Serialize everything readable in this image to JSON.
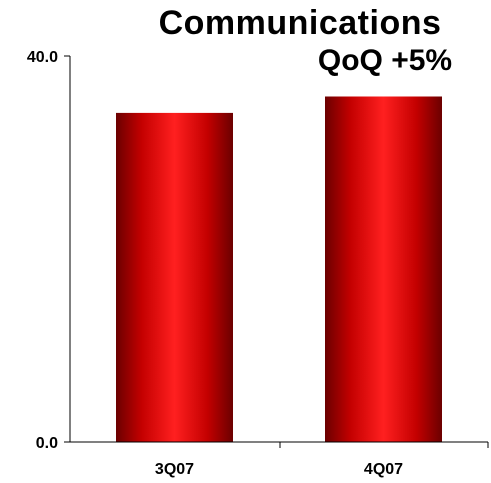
{
  "chart_data": {
    "type": "bar",
    "title": "Communications",
    "annotation": "QoQ +5%",
    "categories": [
      "3Q07",
      "4Q07"
    ],
    "values": [
      34.1,
      35.8
    ],
    "ylim": [
      0,
      40
    ],
    "yticks": [
      "0.0",
      "40.0"
    ],
    "xlabel": "",
    "ylabel": "",
    "grid": false,
    "legend": "none",
    "colors": {
      "bar_mid": "#ff1a1a",
      "bar_edge": "#6b0000",
      "axis": "#000000"
    }
  }
}
